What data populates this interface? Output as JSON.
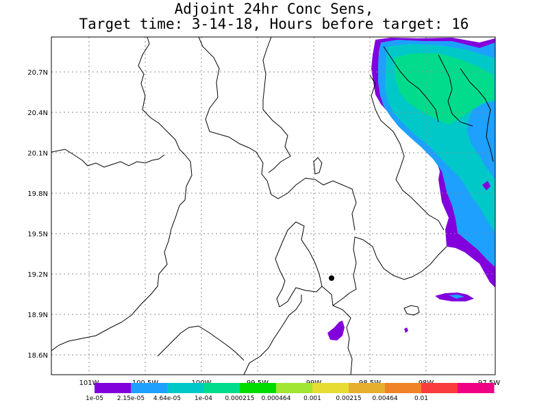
{
  "title": {
    "line1": "Adjoint 24hr Conc Sens,",
    "line2": "Target time: 3-14-18, Hours before target: 16"
  },
  "map": {
    "lat_labels": [
      "20.7N",
      "20.4N",
      "20.1N",
      "19.8N",
      "19.5N",
      "19.2N",
      "18.9N",
      "18.6N"
    ],
    "lon_labels": [
      "101W",
      "100.5W",
      "100W",
      "99.5W",
      "99W",
      "98.5W",
      "98W",
      "97.5W"
    ],
    "target_marker": "target-point"
  },
  "colorbar": {
    "colors": [
      "#8200dc",
      "#1ea0ff",
      "#00c8c8",
      "#00dc8c",
      "#00dc00",
      "#a0e632",
      "#e6dc32",
      "#e6af2d",
      "#f08228",
      "#fa3c3c",
      "#f00082"
    ],
    "labels": [
      "1e-05",
      "2.15e-05",
      "4.64e-05",
      "1e-04",
      "0.000215",
      "0.000464",
      "0.001",
      "0.00215",
      "0.00464",
      "0.01"
    ]
  }
}
